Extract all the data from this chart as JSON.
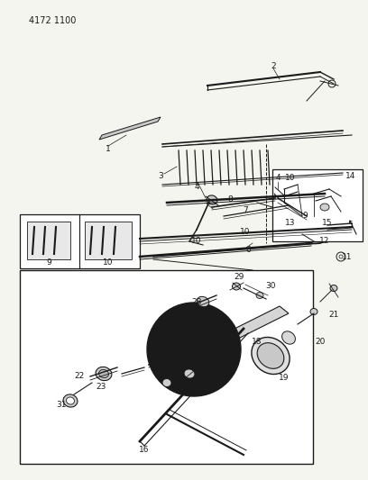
{
  "part_number": "4172 1100",
  "bg_color": "#f5f5f0",
  "line_color": "#1a1a1a",
  "figsize": [
    4.08,
    5.33
  ],
  "dpi": 100,
  "font_size": 6.5,
  "part_number_fontsize": 7
}
